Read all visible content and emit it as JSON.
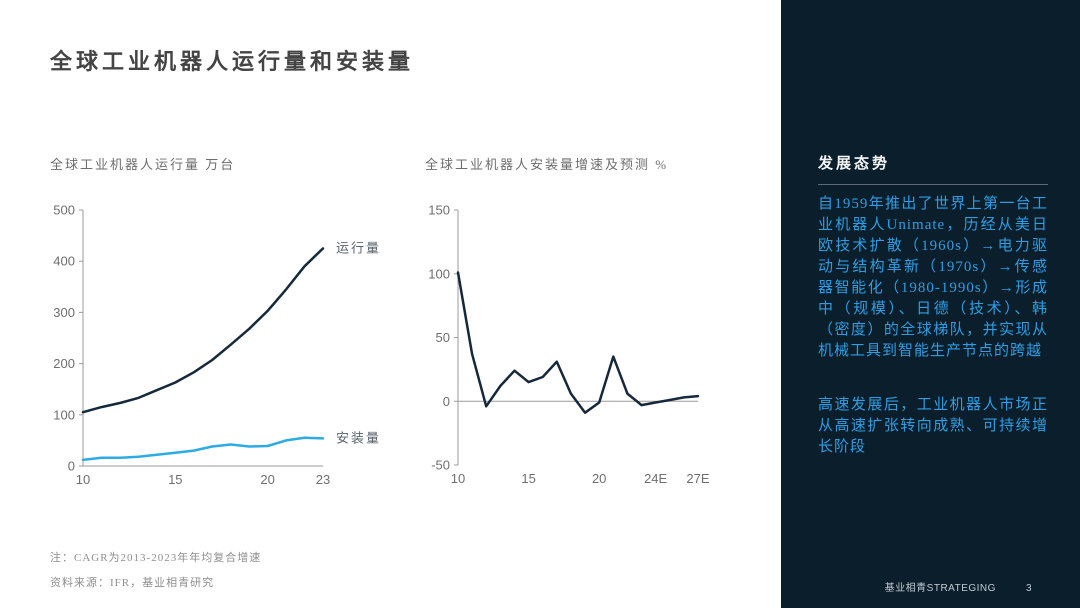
{
  "page": {
    "title": "全球工业机器人运行量和安装量"
  },
  "footnotes": {
    "note": "注：CAGR为2013-2023年年均复合增速",
    "source": "资料来源：IFR，基业相青研究"
  },
  "sidebar": {
    "heading": "发展态势",
    "paragraphs": [
      "自1959年推出了世界上第一台工业机器人Unimate，历经从美日欧技术扩散（1960s）→电力驱动与结构革新（1970s）→传感器智能化（1980-1990s）→形成中（规模）、日德（技术）、韩（密度）的全球梯队，并实现从机械工具到智能生产节点的跨越",
      "高速发展后，工业机器人市场正从高速扩张转向成熟、可持续增长阶段"
    ],
    "footer_brand": "基业相青STRATEGING",
    "page_number": "3",
    "background_color": "#0a1e2b",
    "text_color": "#2e9ee4"
  },
  "colors": {
    "stock_line": "#15293b",
    "install_line": "#2dabe4",
    "axis": "#9b9b9b",
    "tick_text": "#6e6e6e"
  },
  "chart_data": [
    {
      "type": "line",
      "title": "全球工业机器人运行量 万台",
      "x": [
        2010,
        2011,
        2012,
        2013,
        2014,
        2015,
        2016,
        2017,
        2018,
        2019,
        2020,
        2021,
        2022,
        2023
      ],
      "xlim": [
        2010,
        2023
      ],
      "ylim": [
        0,
        500
      ],
      "yticks": [
        0,
        100,
        200,
        300,
        400,
        500
      ],
      "xticks": [
        {
          "v": 2010,
          "label": "10"
        },
        {
          "v": 2015,
          "label": "15"
        },
        {
          "v": 2020,
          "label": "20"
        },
        {
          "v": 2023,
          "label": "23"
        }
      ],
      "baseline": true,
      "zeroline": false,
      "grid": false,
      "legend": "series names as end-of-line labels",
      "series": [
        {
          "name": "运行量",
          "color": "#15293b",
          "values": [
            105,
            115,
            123,
            133,
            148,
            163,
            183,
            207,
            237,
            268,
            303,
            345,
            390,
            425
          ]
        },
        {
          "name": "安装量",
          "color": "#2dabe4",
          "values": [
            12,
            16,
            16,
            18,
            22,
            26,
            30,
            38,
            42,
            38,
            39,
            50,
            55,
            54
          ]
        }
      ]
    },
    {
      "type": "line",
      "title": "全球工业机器人安装量增速及预测 %",
      "x": [
        2010,
        2011,
        2012,
        2013,
        2014,
        2015,
        2016,
        2017,
        2018,
        2019,
        2020,
        2021,
        2022,
        2023,
        2024,
        2025,
        2026,
        2027
      ],
      "xlim": [
        2010,
        2027
      ],
      "ylim": [
        -50,
        150
      ],
      "yticks": [
        -50,
        0,
        50,
        100,
        150
      ],
      "xticks": [
        {
          "v": 2010,
          "label": "10"
        },
        {
          "v": 2015,
          "label": "15"
        },
        {
          "v": 2020,
          "label": "20"
        },
        {
          "v": 2024,
          "label": "24E"
        },
        {
          "v": 2027,
          "label": "27E"
        }
      ],
      "baseline": false,
      "zeroline": true,
      "grid": false,
      "legend": "none",
      "series": [
        {
          "name": "安装量增速",
          "color": "#15293b",
          "values": [
            101,
            37,
            -4,
            12,
            24,
            15,
            19,
            31,
            6,
            -9,
            -1,
            35,
            6,
            -3,
            -1,
            1,
            3,
            4
          ]
        }
      ]
    }
  ]
}
